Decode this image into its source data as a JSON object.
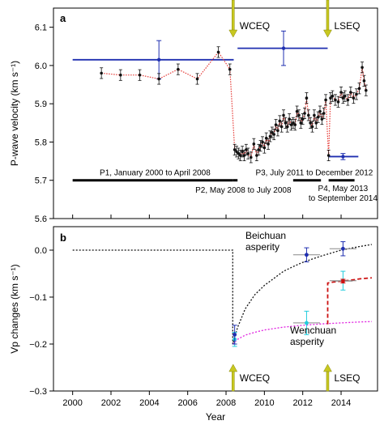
{
  "chart_data": [
    {
      "panel": "a",
      "type": "scatter",
      "ylabel": "P-wave velocity (km s⁻¹)",
      "xlim": [
        1999.0,
        2015.9
      ],
      "ylim": [
        5.6,
        6.15
      ],
      "yticks": [
        5.6,
        5.7,
        5.8,
        5.9,
        6.0,
        6.1
      ],
      "ytick_labels": [
        "5.6",
        "5.7",
        "5.8",
        "5.9",
        "6.0",
        "6.1"
      ],
      "events": [
        {
          "label": "WCEQ",
          "x": 2008.37
        },
        {
          "label": "LSEQ",
          "x": 2013.3
        }
      ],
      "colors": {
        "series": "#e53935",
        "points": "#111111",
        "mean": "#1f2fb0",
        "periods": "#000000",
        "arrow": "#c8c820"
      },
      "series": {
        "x": [
          2001.5,
          2002.5,
          2003.5,
          2004.5,
          2005.5,
          2006.5,
          2007.6,
          2008.2,
          2008.45,
          2008.55,
          2008.65,
          2008.75,
          2008.85,
          2008.95,
          2009.05,
          2009.15,
          2009.3,
          2009.45,
          2009.6,
          2009.7,
          2009.8,
          2009.9,
          2010.0,
          2010.1,
          2010.2,
          2010.3,
          2010.4,
          2010.5,
          2010.6,
          2010.7,
          2010.8,
          2010.9,
          2011.0,
          2011.1,
          2011.2,
          2011.3,
          2011.4,
          2011.5,
          2011.6,
          2011.7,
          2011.8,
          2011.9,
          2012.0,
          2012.1,
          2012.2,
          2012.3,
          2012.4,
          2012.5,
          2012.6,
          2012.7,
          2012.8,
          2012.9,
          2013.0,
          2013.1,
          2013.2,
          2013.35,
          2013.45,
          2013.55,
          2013.7,
          2013.85,
          2014.0,
          2014.1,
          2014.2,
          2014.35,
          2014.5,
          2014.65,
          2014.8,
          2014.95,
          2015.1,
          2015.2,
          2015.3
        ],
        "y": [
          5.98,
          5.975,
          5.975,
          5.965,
          5.99,
          5.965,
          6.035,
          5.99,
          5.78,
          5.775,
          5.77,
          5.765,
          5.775,
          5.765,
          5.78,
          5.77,
          5.76,
          5.795,
          5.765,
          5.78,
          5.79,
          5.8,
          5.785,
          5.81,
          5.795,
          5.815,
          5.825,
          5.82,
          5.845,
          5.83,
          5.855,
          5.84,
          5.87,
          5.85,
          5.84,
          5.86,
          5.845,
          5.85,
          5.845,
          5.88,
          5.87,
          5.85,
          5.86,
          5.875,
          5.915,
          5.87,
          5.85,
          5.84,
          5.87,
          5.85,
          5.865,
          5.88,
          5.86,
          5.875,
          5.91,
          5.765,
          5.915,
          5.92,
          5.91,
          5.905,
          5.93,
          5.915,
          5.92,
          5.91,
          5.93,
          5.915,
          5.925,
          5.94,
          5.995,
          5.96,
          5.935
        ],
        "err": 0.014
      },
      "period_means": [
        {
          "x0": 2000.0,
          "x1": 2008.4,
          "y": 6.015,
          "xm": 2004.5,
          "yerr": 0.05
        },
        {
          "x0": 2008.6,
          "x1": 2013.3,
          "y": 6.045,
          "xm": 2011.0,
          "yerr": 0.045
        },
        {
          "x0": 2013.35,
          "x1": 2014.9,
          "y": 5.762,
          "xm": 2014.1,
          "yerr": 0.008
        }
      ],
      "periods": [
        {
          "label": "P1, January 2000 to April 2008",
          "x0": 2000.0,
          "x1": 2008.35,
          "y": 5.7
        },
        {
          "label": "P2, May 2008 to July 2008",
          "x0": 2008.35,
          "x1": 2008.6,
          "y": 5.7
        },
        {
          "label": "P3, July 2011 to December 2012",
          "x0": 2011.5,
          "x1": 2012.95,
          "y": 5.7
        },
        {
          "label": "P4, May 2013 to September 2014",
          "x0": 2013.35,
          "x1": 2014.7,
          "y": 5.7
        }
      ]
    },
    {
      "panel": "b",
      "type": "line",
      "xlabel": "Year",
      "ylabel": "Vp changes (km s⁻¹)",
      "xlim": [
        1999.0,
        2015.9
      ],
      "ylim": [
        -0.3,
        0.05
      ],
      "xticks": [
        2000,
        2002,
        2004,
        2006,
        2008,
        2010,
        2012,
        2014
      ],
      "xtick_labels": [
        "2000",
        "2002",
        "2004",
        "2006",
        "2008",
        "2010",
        "2012",
        "2014"
      ],
      "yticks": [
        0.0,
        -0.1,
        -0.2,
        -0.3
      ],
      "ytick_labels": [
        "0.0",
        "−0.1",
        "−0.2",
        "−0.3"
      ],
      "labels": {
        "beichuan": "Beichuan\nasperity",
        "wenchuan": "Wenchuan\nasperity"
      },
      "colors": {
        "beichuan": "#111111",
        "wenchuan": "#e020e0",
        "lseq_curve": "#cc1111",
        "blue_points": "#1f2fb0",
        "cyan_points": "#22ccdd",
        "red_points": "#cc1111"
      },
      "curves": {
        "beichuan": {
          "x": [
            2000,
            2008.35,
            2008.35,
            2008.6,
            2009.0,
            2009.5,
            2010.0,
            2010.5,
            2011.0,
            2011.5,
            2012.0,
            2012.5,
            2013.0,
            2013.5,
            2014.0,
            2014.5,
            2015.0,
            2015.6
          ],
          "y": [
            0.0,
            0.0,
            -0.2,
            -0.165,
            -0.125,
            -0.095,
            -0.075,
            -0.06,
            -0.045,
            -0.035,
            -0.026,
            -0.019,
            -0.012,
            -0.006,
            0.0,
            0.004,
            0.008,
            0.012
          ]
        },
        "wenchuan": {
          "x": [
            2008.35,
            2008.6,
            2009.0,
            2009.5,
            2010.0,
            2011.0,
            2012.0,
            2013.0,
            2014.0,
            2015.0,
            2015.6
          ],
          "y": [
            -0.2,
            -0.19,
            -0.181,
            -0.175,
            -0.17,
            -0.164,
            -0.16,
            -0.157,
            -0.155,
            -0.153,
            -0.152
          ]
        },
        "lseq": {
          "x": [
            2013.3,
            2013.3,
            2013.6,
            2014.0,
            2014.5,
            2015.0,
            2015.6
          ],
          "y": [
            -0.158,
            -0.07,
            -0.068,
            -0.066,
            -0.064,
            -0.061,
            -0.059
          ]
        }
      },
      "points_blue": [
        {
          "x": 2008.45,
          "y": -0.18,
          "yerr": 0.02,
          "xerr": 0.1
        },
        {
          "x": 2012.2,
          "y": -0.01,
          "yerr": 0.015,
          "xerr": 0.7
        },
        {
          "x": 2014.1,
          "y": 0.003,
          "yerr": 0.015,
          "xerr": 0.7
        }
      ],
      "points_cyan": [
        {
          "x": 2008.45,
          "y": -0.19,
          "yerr": 0.015,
          "xerr": 0.1
        },
        {
          "x": 2012.2,
          "y": -0.155,
          "yerr": 0.025,
          "xerr": 0.7
        },
        {
          "x": 2014.1,
          "y": -0.065,
          "yerr": 0.02,
          "xerr": 0.7
        }
      ],
      "points_red": [
        {
          "x": 2014.1,
          "y": -0.066,
          "yerr": 0.004,
          "xerr": 0.5
        }
      ],
      "events": [
        {
          "label": "WCEQ",
          "x": 2008.37
        },
        {
          "label": "LSEQ",
          "x": 2013.3
        }
      ]
    }
  ],
  "panel_labels": {
    "a": "a",
    "b": "b"
  }
}
